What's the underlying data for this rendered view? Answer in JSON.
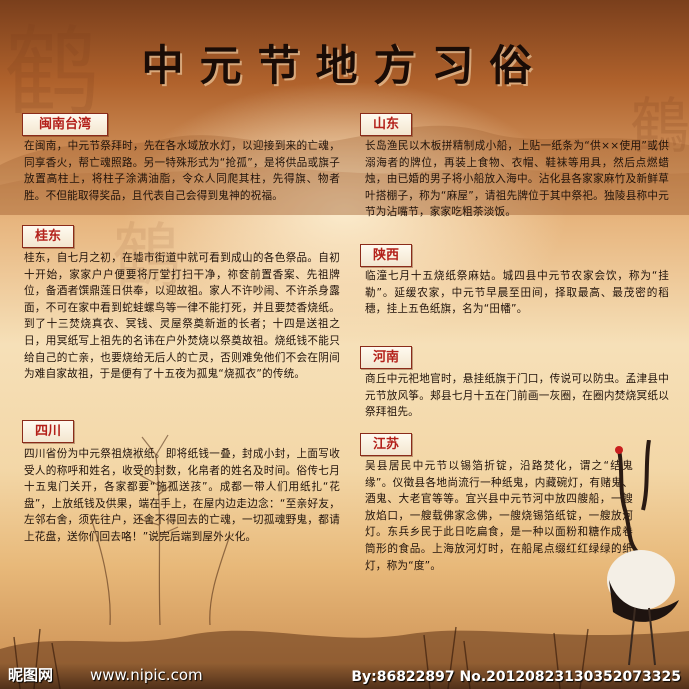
{
  "title": "中元节地方习俗",
  "background_chars": [
    "鹤",
    "鶴",
    "鶴"
  ],
  "colors": {
    "tag_text": "#b3201a",
    "body_text": "#20120a",
    "title": "#1a0c06"
  },
  "sections": [
    {
      "tag": "闽南台湾",
      "text": "在闽南，中元节祭拜时，先在各水域放水灯，以迎接到来的亡魂，同享香火，帮亡魂照路。另一特殊形式为“抢孤”，是将供品或旗子放置高柱上，将柱子涂满油脂，令众人同爬其柱，先得旗、物者胜。不但能取得奖品，且代表自己会得到鬼神的祝福。"
    },
    {
      "tag": "桂东",
      "text": "桂东，自七月之初，在墟市街道中就可看到成山的各色祭品。自初十开始，家家户户便要将厅堂打扫干净，祢奁前置香案、先祖牌位，备酒者馔鼎莲日供奉，以迎故祖。家人不许吵闹、不许杀身露面，不可在家中看到蛇蛙螺鸟等一律不能打死，并且要焚香烧纸。到了十三焚烧真衣、冥钱、灵屋祭奠新逝的长者；十四是送祖之日，用冥纸写上祖先的名讳在户外焚烧以祭奠故祖。烧纸钱不能只给自己的亡亲，也要烧给无后人的亡灵，否则难免他们不会在阴间为难自家故祖，于是便有了十五夜为孤鬼“烧孤衣”的传统。"
    },
    {
      "tag": "四川",
      "text": "四川省份为中元祭祖烧袱纸。即将纸钱一叠，封成小封，上面写收受人的称呼和姓名，收受的封数，化帛者的姓名及时间。俗传七月十五鬼门关开，各家都要“施孤送孩”。成都一带人们用纸扎“花盘”，上放纸钱及供果，端在手上，在屋内边走边念：“至亲好友，左邻右舍，须先往户，还舍不得回去的亡魂，一切孤魂野鬼，都请上花盘，送你们回去咯！”说完后端到屋外火化。"
    },
    {
      "tag": "山东",
      "text": "长岛渔民以木板拼精制成小船，上贴一纸条为“供××使用”或供溺海者的牌位，再装上食物、衣帽、鞋袜等用具，然后点燃蜡烛，由已婚的男子将小船放入海中。沾化县各家家麻竹及新鲜草叶搭棚子，称为“麻屋”，请祖先牌位于其中祭祀。独陵县称中元节为沾嘴节，家家吃粗茶淡饭。"
    },
    {
      "tag": "陕西",
      "text": "临潼七月十五烧纸祭麻姑。城四县中元节农家会饮，称为“挂勒”。延缓农家，中元节早晨至田间，择取最高、最茂密的稻穗，挂上五色纸旗，名为“田幡”。"
    },
    {
      "tag": "河南",
      "text": "商丘中元祀地官时，悬挂纸旗于门口，传说可以防虫。孟津县中元节放风筝。郏县七月十五在门前画一灰圈，在圈内焚烧冥纸以祭拜祖先。"
    },
    {
      "tag": "江苏",
      "text": "吴县居民中元节以锡箔折锭，沿路焚化，谓之“结鬼缘”。仪徵县各地尚流行一种纸鬼，内藏碗灯，有赌鬼、酒鬼、大老官等等。宜兴县中元节河中放四艘船，一艘放焰口，一艘载佛家念佛，一艘烧锡箔纸锭，一艘放河灯。东兵乡民于此日吃扁食，是一种以面粉和糖作成卷筒形的食品。上海放河灯时，在船尾点缀红红绿绿的纸灯，称为“度”。"
    }
  ],
  "watermark": {
    "logo": "昵图网",
    "url": "www.nipic.com",
    "id": "By:86822897 No.20120823130352073325"
  }
}
